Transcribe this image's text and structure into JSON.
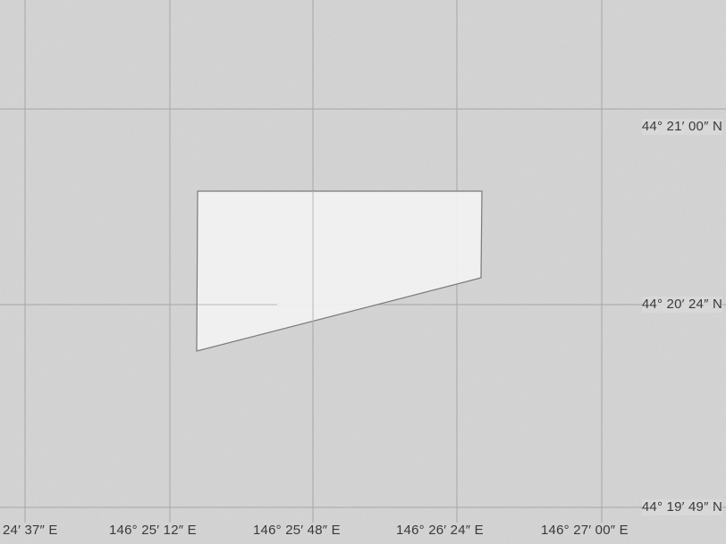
{
  "map": {
    "latitude_labels": [
      "44° 21′ 00″ N",
      "44° 20′ 24″ N",
      "44° 19′ 49″ N"
    ],
    "longitude_labels": [
      "24′ 37″ E",
      "146° 25′ 12″ E",
      "146° 25′ 48″ E",
      "146° 26′ 24″ E",
      "146° 27′ 00″ E"
    ],
    "place_label": "",
    "colors": {
      "background": "#d9d9d9",
      "gridline": "#a6a6a6",
      "selection_fill": "#f2f2f2",
      "selection_stroke": "#7a7a7a",
      "label_text": "#3a3a3a"
    }
  }
}
